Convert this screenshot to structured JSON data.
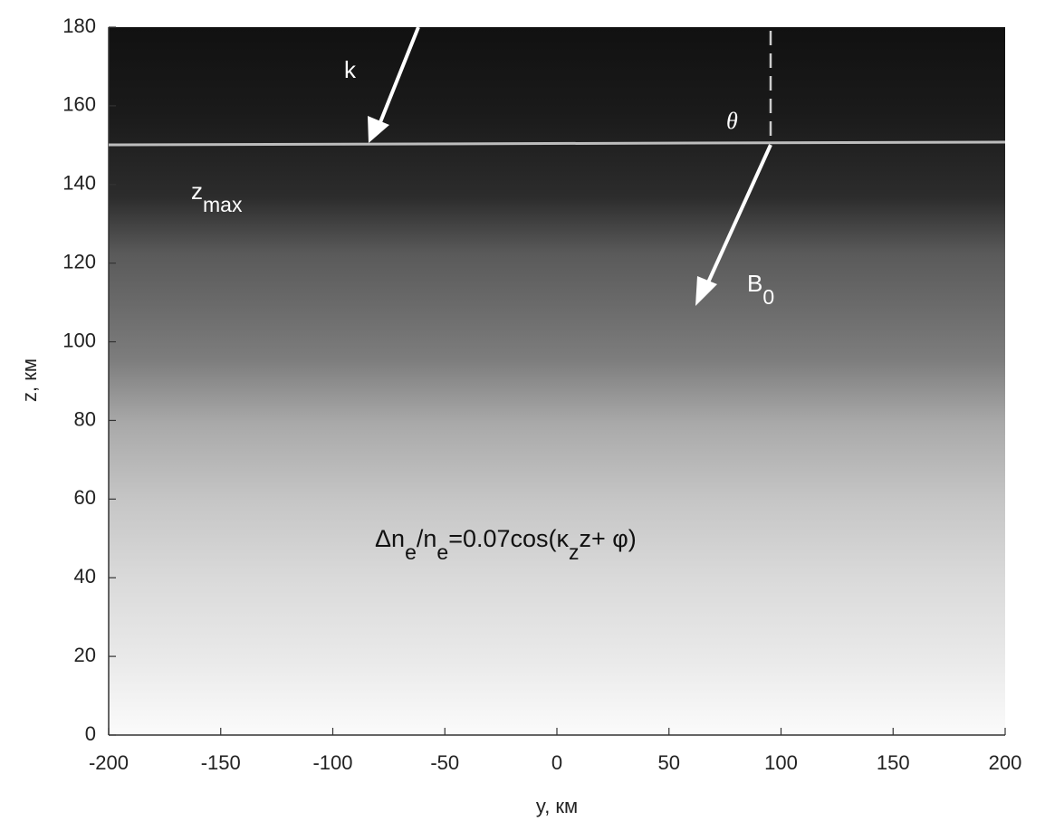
{
  "chart_data": {
    "type": "heatmap",
    "xlabel": "y, км",
    "ylabel": "z, км",
    "xlim": [
      -200,
      200
    ],
    "xticks": [
      -200,
      -150,
      -100,
      -50,
      0,
      50,
      100,
      150,
      200
    ],
    "ylim": [
      0,
      180
    ],
    "yticks": [
      0,
      20,
      40,
      60,
      80,
      100,
      120,
      140,
      160,
      180
    ],
    "annotations": [
      [
        "k"
      ],
      [
        "θ"
      ],
      [
        "z",
        "max"
      ],
      [
        "B",
        "0"
      ],
      [
        "Δn",
        "e",
        "/n",
        "e",
        "=0.07cos(κ",
        "z",
        "z+ φ)"
      ]
    ]
  }
}
